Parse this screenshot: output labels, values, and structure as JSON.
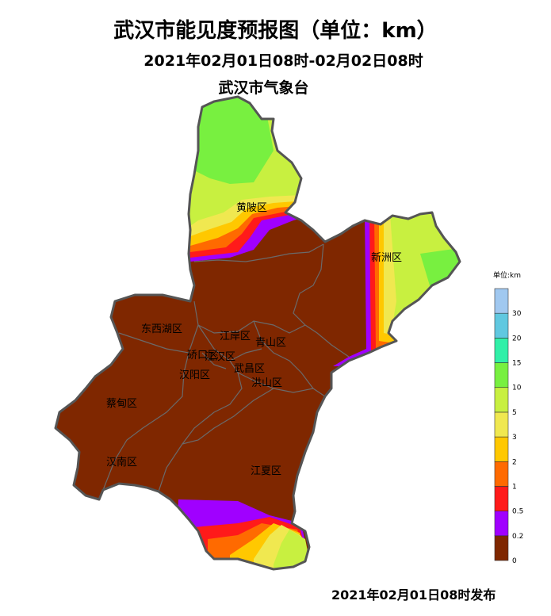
{
  "title": "武汉市能见度预报图（单位：km）",
  "period": "2021年02月01日08时-02月02日08时",
  "agency": "武汉市气象台",
  "issued": "2021年02月01日08时发布",
  "districts": {
    "huangpi": "黄陂区",
    "xinzhou": "新洲区",
    "dongxihu": "东西湖区",
    "jiangan": "江岸区",
    "qingshan": "青山区",
    "qiaokou": "硚口区",
    "jianghan": "江汉区",
    "hanyang": "汉阳区",
    "wuchang": "武昌区",
    "hongshan": "洪山区",
    "caidian": "蔡甸区",
    "hannan": "汉南区",
    "jiangxia": "江夏区"
  },
  "legend": {
    "title": "单位:km",
    "bins": [
      {
        "label": "0",
        "color": "#7f2700"
      },
      {
        "label": "0.2",
        "color": "#a000ff"
      },
      {
        "label": "0.5",
        "color": "#ff1a1a"
      },
      {
        "label": "1",
        "color": "#ff6a00"
      },
      {
        "label": "2",
        "color": "#ffc800"
      },
      {
        "label": "3",
        "color": "#f0e850"
      },
      {
        "label": "5",
        "color": "#c8f040"
      },
      {
        "label": "10",
        "color": "#78f040"
      },
      {
        "label": "15",
        "color": "#30f0a8"
      },
      {
        "label": "20",
        "color": "#60c8e0"
      },
      {
        "label": "30",
        "color": "#a0c8f0"
      }
    ]
  },
  "colors": {
    "border": "#555555",
    "inner_border": "#6a6a6a"
  }
}
